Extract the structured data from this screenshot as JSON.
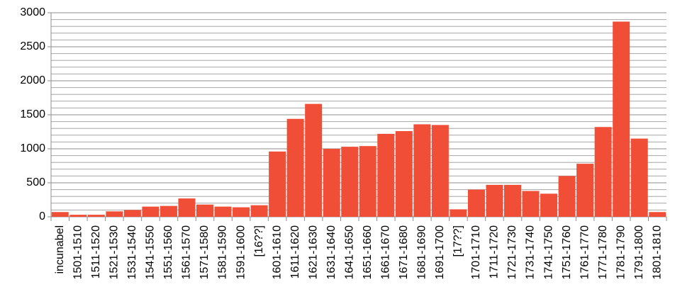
{
  "chart_data": {
    "type": "bar",
    "categories": [
      "incunabel",
      "1501-1510",
      "1511-1520",
      "1521-1530",
      "1531-1540",
      "1541-1550",
      "1551-1560",
      "1561-1570",
      "1571-1580",
      "1581-1590",
      "1591-1600",
      "[16??]",
      "1601-1610",
      "1611-1620",
      "1621-1630",
      "1631-1640",
      "1641-1650",
      "1651-1660",
      "1661-1670",
      "1671-1680",
      "1681-1690",
      "1691-1700",
      "[17??]",
      "1701-1710",
      "1711-1720",
      "1721-1730",
      "1731-1740",
      "1741-1750",
      "1751-1760",
      "1761-1770",
      "1771-1780",
      "1781-1790",
      "1791-1800",
      "1801-1810"
    ],
    "values": [
      70,
      30,
      30,
      80,
      100,
      150,
      160,
      270,
      180,
      150,
      140,
      170,
      960,
      1440,
      1660,
      1000,
      1030,
      1040,
      1220,
      1260,
      1360,
      1350,
      110,
      400,
      470,
      470,
      380,
      340,
      600,
      780,
      1320,
      2870,
      1150,
      70
    ],
    "color": "#f04e37",
    "ylim": [
      0,
      3000
    ],
    "yticks": [
      0,
      500,
      1000,
      1500,
      2000,
      2500,
      3000
    ],
    "grid": true,
    "minor_grid_step": 100
  }
}
